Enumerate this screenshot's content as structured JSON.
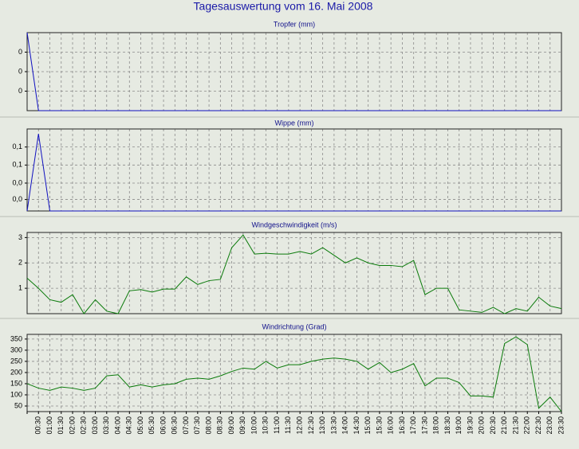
{
  "title": "Tagesauswertung vom 16. Mai 2008",
  "chart_data": [
    {
      "type": "line",
      "title": "Tropfer (mm)",
      "color": "#1010c0",
      "ylim": [
        0,
        0.4
      ],
      "yticks": [
        {
          "value": 0.1,
          "label": "0"
        },
        {
          "value": 0.2,
          "label": "0"
        },
        {
          "value": 0.3,
          "label": "0"
        }
      ],
      "values": [
        0.4,
        0,
        0,
        0,
        0,
        0,
        0,
        0,
        0,
        0,
        0,
        0,
        0,
        0,
        0,
        0,
        0,
        0,
        0,
        0,
        0,
        0,
        0,
        0,
        0,
        0,
        0,
        0,
        0,
        0,
        0,
        0,
        0,
        0,
        0,
        0,
        0,
        0,
        0,
        0,
        0,
        0,
        0,
        0,
        0,
        0,
        0,
        0
      ],
      "grid": true
    },
    {
      "type": "line",
      "title": "Wippe (mm)",
      "color": "#1010c0",
      "ylim": [
        0,
        0.1
      ],
      "yticks": [
        {
          "value": 0.014,
          "label": "0,0"
        },
        {
          "value": 0.034,
          "label": "0,0"
        },
        {
          "value": 0.056,
          "label": "0,1"
        },
        {
          "value": 0.078,
          "label": "0,1"
        }
      ],
      "values": [
        0,
        0.094,
        0,
        0,
        0,
        0,
        0,
        0,
        0,
        0,
        0,
        0,
        0,
        0,
        0,
        0,
        0,
        0,
        0,
        0,
        0,
        0,
        0,
        0,
        0,
        0,
        0,
        0,
        0,
        0,
        0,
        0,
        0,
        0,
        0,
        0,
        0,
        0,
        0,
        0,
        0,
        0,
        0,
        0,
        0,
        0,
        0,
        0
      ],
      "grid": true
    },
    {
      "type": "line",
      "title": "Windgeschwindigkeit (m/s)",
      "color": "#0a7a0a",
      "ylim": [
        0,
        3.2
      ],
      "yticks": [
        1,
        2,
        3
      ],
      "values": [
        1.4,
        1.0,
        0.55,
        0.45,
        0.75,
        0.0,
        0.55,
        0.1,
        0.0,
        0.9,
        0.95,
        0.85,
        0.97,
        0.97,
        1.45,
        1.15,
        1.3,
        1.35,
        2.6,
        3.1,
        2.35,
        2.38,
        2.35,
        2.35,
        2.45,
        2.35,
        2.6,
        2.3,
        2.0,
        2.2,
        2.0,
        1.9,
        1.9,
        1.85,
        2.1,
        0.75,
        1.0,
        1.0,
        0.15,
        0.1,
        0.05,
        0.25,
        0.0,
        0.2,
        0.1,
        0.65,
        0.3,
        0.2
      ],
      "grid": true
    },
    {
      "type": "line",
      "title": "Windrichtung (Grad)",
      "color": "#0a7a0a",
      "ylim": [
        25,
        371
      ],
      "yticks": [
        50,
        100,
        150,
        200,
        250,
        300,
        350
      ],
      "categories": [
        null,
        "00:30",
        "01:00",
        "01:30",
        "02:00",
        "02:30",
        "03:00",
        "03:30",
        "04:00",
        "04:30",
        "05:00",
        "05:30",
        "06:00",
        "06:30",
        "07:00",
        "07:30",
        "08:00",
        "08:30",
        "09:00",
        "09:30",
        "10:00",
        "10:30",
        "11:00",
        "11:30",
        "12:00",
        "12:30",
        "13:00",
        "13:30",
        "14:00",
        "14:30",
        "15:00",
        "15:30",
        "16:00",
        "16:30",
        "17:00",
        "17:30",
        "18:00",
        "18:30",
        "19:00",
        "19:30",
        "20:00",
        "20:30",
        "21:00",
        "21:30",
        "22:00",
        "22:30",
        "23:00",
        "23:30"
      ],
      "values": [
        150,
        130,
        120,
        135,
        130,
        120,
        130,
        185,
        190,
        135,
        145,
        135,
        145,
        150,
        170,
        175,
        170,
        185,
        205,
        220,
        215,
        250,
        220,
        235,
        235,
        250,
        260,
        265,
        260,
        250,
        215,
        245,
        200,
        215,
        240,
        140,
        175,
        175,
        155,
        95,
        95,
        90,
        330,
        360,
        325,
        40,
        90,
        25
      ],
      "grid": true
    }
  ]
}
